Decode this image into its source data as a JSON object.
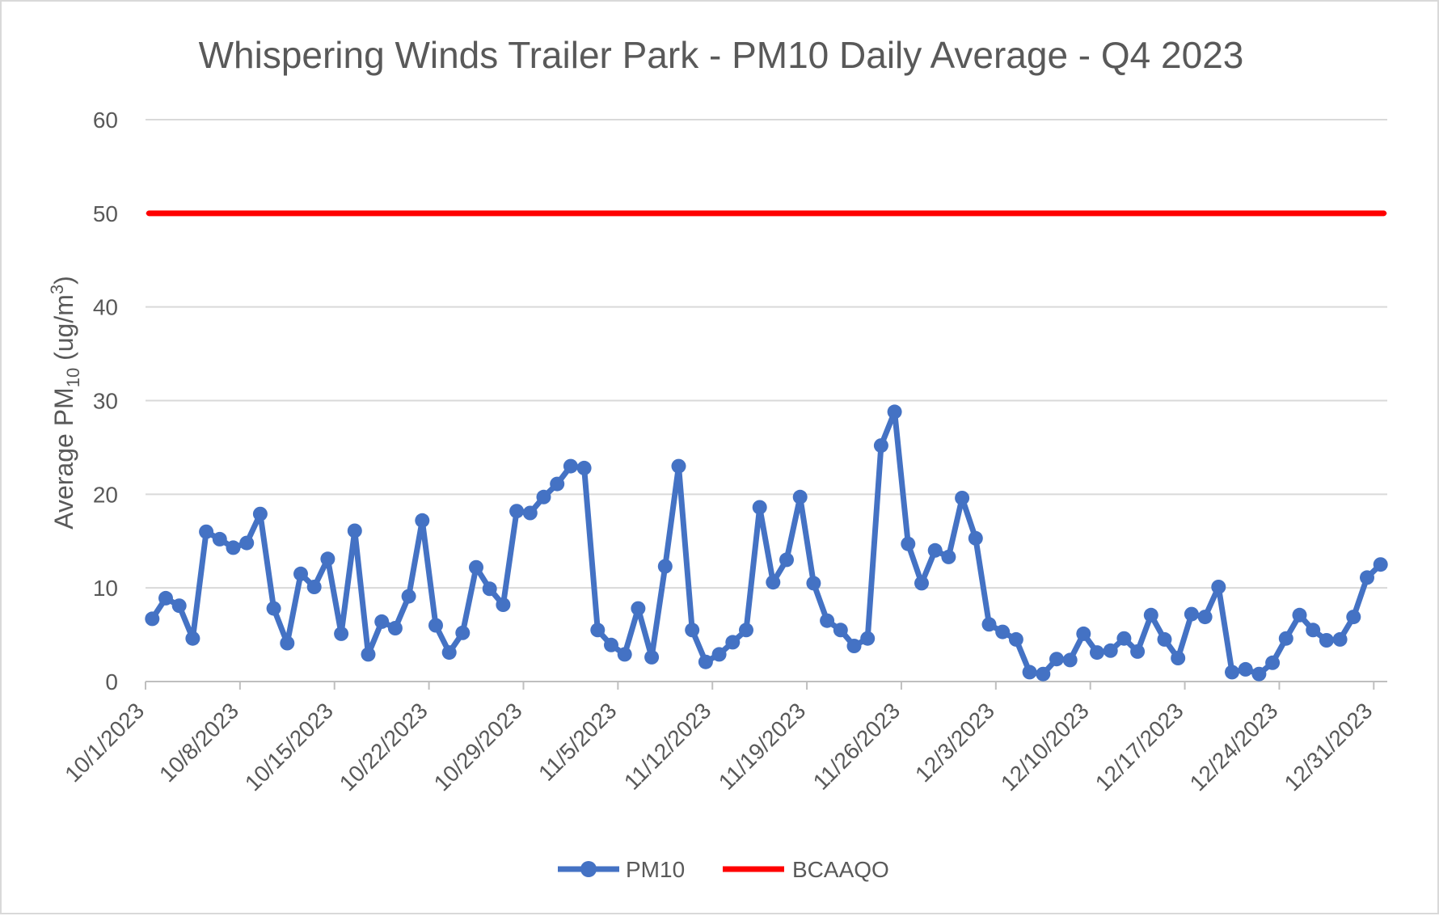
{
  "chart_data": {
    "type": "line",
    "title": "Whispering Winds Trailer Park - PM10 Daily Average - Q4 2023",
    "ylabel": {
      "prefix": "Average PM",
      "sub": "10",
      "mid": " (ug/m",
      "sup": "3",
      "suffix": ")"
    },
    "xlabel": "",
    "ylim": [
      0,
      60
    ],
    "yticks": [
      0,
      10,
      20,
      30,
      40,
      50,
      60
    ],
    "x_start": "10/1/2023",
    "x_ticks": [
      "10/1/2023",
      "10/8/2023",
      "10/15/2023",
      "10/22/2023",
      "10/29/2023",
      "11/5/2023",
      "11/12/2023",
      "11/19/2023",
      "11/26/2023",
      "12/3/2023",
      "12/10/2023",
      "12/17/2023",
      "12/24/2023",
      "12/31/2023"
    ],
    "grid": true,
    "legend_position": "bottom",
    "series": [
      {
        "name": "PM10",
        "color": "#4472c4",
        "marker": "circle",
        "values": [
          6.7,
          8.9,
          8.1,
          4.6,
          16.0,
          15.2,
          14.3,
          14.8,
          17.9,
          7.8,
          4.1,
          11.5,
          10.1,
          13.1,
          5.1,
          16.1,
          2.9,
          6.4,
          5.7,
          9.1,
          17.2,
          6.0,
          3.1,
          5.2,
          12.2,
          9.9,
          8.2,
          18.2,
          18.0,
          19.7,
          21.1,
          23.0,
          22.8,
          5.5,
          3.9,
          2.9,
          7.8,
          2.6,
          12.3,
          23.0,
          5.5,
          2.1,
          2.9,
          4.2,
          5.5,
          18.6,
          10.6,
          13.0,
          19.7,
          10.5,
          6.5,
          5.5,
          3.8,
          4.6,
          25.2,
          28.8,
          14.7,
          10.5,
          14.0,
          13.3,
          19.6,
          15.3,
          6.1,
          5.3,
          4.5,
          1.0,
          0.8,
          2.4,
          2.3,
          5.1,
          3.1,
          3.3,
          4.6,
          3.2,
          7.1,
          4.5,
          2.5,
          7.2,
          6.9,
          10.1,
          1.0,
          1.3,
          0.8,
          2.0,
          4.6,
          7.1,
          5.5,
          4.4,
          4.5,
          6.9,
          11.1,
          12.5
        ]
      },
      {
        "name": "BCAAQO",
        "color": "#ff0000",
        "marker": "none",
        "values": [
          50,
          50
        ]
      }
    ]
  }
}
